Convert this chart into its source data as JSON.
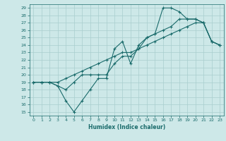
{
  "xlabel": "Humidex (Indice chaleur)",
  "background_color": "#cde8e8",
  "grid_color": "#a8cece",
  "line_color": "#1a6b6b",
  "xlim": [
    -0.5,
    23.5
  ],
  "ylim": [
    14.5,
    29.5
  ],
  "xticks": [
    0,
    1,
    2,
    3,
    4,
    5,
    6,
    7,
    8,
    9,
    10,
    11,
    12,
    13,
    14,
    15,
    16,
    17,
    18,
    19,
    20,
    21,
    22,
    23
  ],
  "yticks": [
    15,
    16,
    17,
    18,
    19,
    20,
    21,
    22,
    23,
    24,
    25,
    26,
    27,
    28,
    29
  ],
  "line1_x": [
    0,
    1,
    2,
    3,
    4,
    5,
    6,
    7,
    8,
    9,
    10,
    11,
    12,
    13,
    14,
    15,
    16,
    17,
    18,
    19,
    20,
    21,
    22,
    23
  ],
  "line1_y": [
    19.0,
    19.0,
    19.0,
    18.5,
    16.5,
    15.0,
    16.5,
    18.0,
    19.5,
    19.5,
    23.5,
    24.5,
    21.5,
    24.0,
    25.0,
    25.5,
    29.0,
    29.0,
    28.5,
    27.5,
    27.5,
    27.0,
    24.5,
    24.0
  ],
  "line2_x": [
    0,
    1,
    2,
    3,
    4,
    5,
    6,
    7,
    8,
    9,
    10,
    11,
    12,
    13,
    14,
    15,
    16,
    17,
    18,
    19,
    20,
    21,
    22,
    23
  ],
  "line2_y": [
    19.0,
    19.0,
    19.0,
    18.5,
    18.0,
    19.0,
    20.0,
    20.0,
    20.0,
    20.0,
    21.5,
    22.5,
    22.5,
    23.5,
    25.0,
    25.5,
    26.0,
    26.5,
    27.5,
    27.5,
    27.5,
    27.0,
    24.5,
    24.0
  ],
  "line3_x": [
    0,
    1,
    2,
    3,
    4,
    5,
    6,
    7,
    8,
    9,
    10,
    11,
    12,
    13,
    14,
    15,
    16,
    17,
    18,
    19,
    20,
    21,
    22,
    23
  ],
  "line3_y": [
    19.0,
    19.0,
    19.0,
    19.0,
    19.5,
    20.0,
    20.5,
    21.0,
    21.5,
    22.0,
    22.5,
    23.0,
    23.0,
    23.5,
    24.0,
    24.5,
    25.0,
    25.5,
    26.0,
    26.5,
    27.0,
    27.0,
    24.5,
    24.0
  ]
}
